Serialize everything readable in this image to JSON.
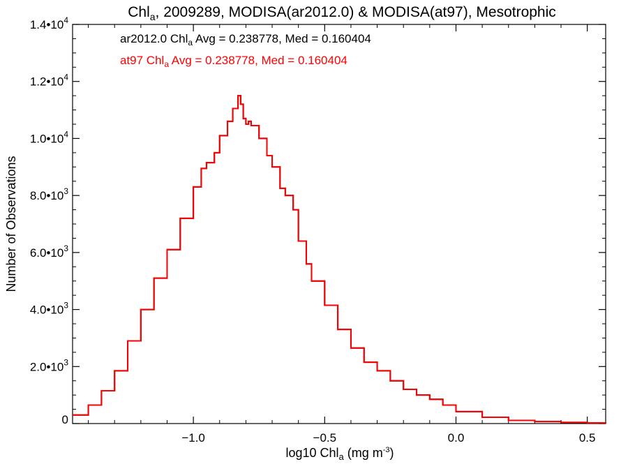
{
  "chart_data": {
    "type": "line",
    "step": true,
    "title": {
      "base": "Chl",
      "sub": "a",
      "rest": ", 2009289, MODISA(ar2012.0) & MODISA(at97), Mesotrophic"
    },
    "xlabel": {
      "base": "log10 Chl",
      "sub": "a",
      "rest": " (mg m",
      "sup": "-3",
      "tail": ")"
    },
    "ylabel": "Number of Observations",
    "xlim": [
      -1.46,
      0.57
    ],
    "ylim": [
      0,
      14000
    ],
    "x_ticks": [
      {
        "value": -1.0,
        "label": "−1.0"
      },
      {
        "value": -0.5,
        "label": "−0.5"
      },
      {
        "value": 0.0,
        "label": "0.0"
      },
      {
        "value": 0.5,
        "label": "0.5"
      }
    ],
    "y_ticks": [
      {
        "value": 0,
        "mant": "0",
        "exp": ""
      },
      {
        "value": 2000,
        "mant": "2.0•10",
        "exp": "3"
      },
      {
        "value": 4000,
        "mant": "4.0•10",
        "exp": "3"
      },
      {
        "value": 6000,
        "mant": "6.0•10",
        "exp": "3"
      },
      {
        "value": 8000,
        "mant": "8.0•10",
        "exp": "3"
      },
      {
        "value": 10000,
        "mant": "1.0•10",
        "exp": "4"
      },
      {
        "value": 12000,
        "mant": "1.2•10",
        "exp": "4"
      },
      {
        "value": 14000,
        "mant": "1.4•10",
        "exp": "4"
      }
    ],
    "grid": false,
    "annotations": [
      {
        "base": "ar2012.0 Chl",
        "sub": "a",
        "rest": " Avg = 0.238778, Med = 0.160404",
        "color": "#000000"
      },
      {
        "base": "at97 Chl",
        "sub": "a",
        "rest": " Avg = 0.238778, Med = 0.160404",
        "color": "#ff0000"
      }
    ],
    "series": [
      {
        "name": "ar2012.0",
        "color": "#000000",
        "x": [
          -1.46,
          -1.4,
          -1.35,
          -1.3,
          -1.25,
          -1.2,
          -1.15,
          -1.1,
          -1.05,
          -1.0,
          -0.97,
          -0.95,
          -0.92,
          -0.9,
          -0.87,
          -0.85,
          -0.83,
          -0.82,
          -0.81,
          -0.8,
          -0.79,
          -0.78,
          -0.75,
          -0.72,
          -0.7,
          -0.67,
          -0.65,
          -0.62,
          -0.6,
          -0.57,
          -0.55,
          -0.5,
          -0.45,
          -0.4,
          -0.35,
          -0.3,
          -0.25,
          -0.2,
          -0.15,
          -0.1,
          -0.05,
          0.0,
          0.1,
          0.2,
          0.3,
          0.4,
          0.5,
          0.57
        ],
        "y": [
          300,
          650,
          1150,
          1850,
          2900,
          4000,
          5100,
          6100,
          7200,
          8300,
          8950,
          9150,
          9500,
          10100,
          10600,
          11050,
          11500,
          11200,
          10700,
          10500,
          10600,
          10450,
          10000,
          9400,
          9000,
          8250,
          8000,
          7500,
          6400,
          5600,
          5000,
          4150,
          3300,
          2650,
          2150,
          1850,
          1500,
          1200,
          1000,
          850,
          650,
          420,
          220,
          110,
          70,
          40,
          25,
          10
        ]
      },
      {
        "name": "at97",
        "color": "#ff0000",
        "x": [
          -1.46,
          -1.4,
          -1.35,
          -1.3,
          -1.25,
          -1.2,
          -1.15,
          -1.1,
          -1.05,
          -1.0,
          -0.97,
          -0.95,
          -0.92,
          -0.9,
          -0.87,
          -0.85,
          -0.83,
          -0.82,
          -0.81,
          -0.8,
          -0.79,
          -0.78,
          -0.75,
          -0.72,
          -0.7,
          -0.67,
          -0.65,
          -0.62,
          -0.6,
          -0.57,
          -0.55,
          -0.5,
          -0.45,
          -0.4,
          -0.35,
          -0.3,
          -0.25,
          -0.2,
          -0.15,
          -0.1,
          -0.05,
          0.0,
          0.1,
          0.2,
          0.3,
          0.4,
          0.5,
          0.57
        ],
        "y": [
          300,
          650,
          1150,
          1850,
          2900,
          4000,
          5100,
          6100,
          7200,
          8300,
          8950,
          9150,
          9500,
          10100,
          10600,
          11050,
          11500,
          11200,
          10700,
          10500,
          10600,
          10450,
          10000,
          9400,
          9000,
          8250,
          8000,
          7500,
          6400,
          5600,
          5000,
          4150,
          3300,
          2650,
          2150,
          1850,
          1500,
          1200,
          1000,
          850,
          650,
          420,
          220,
          110,
          70,
          40,
          25,
          10
        ]
      }
    ]
  }
}
